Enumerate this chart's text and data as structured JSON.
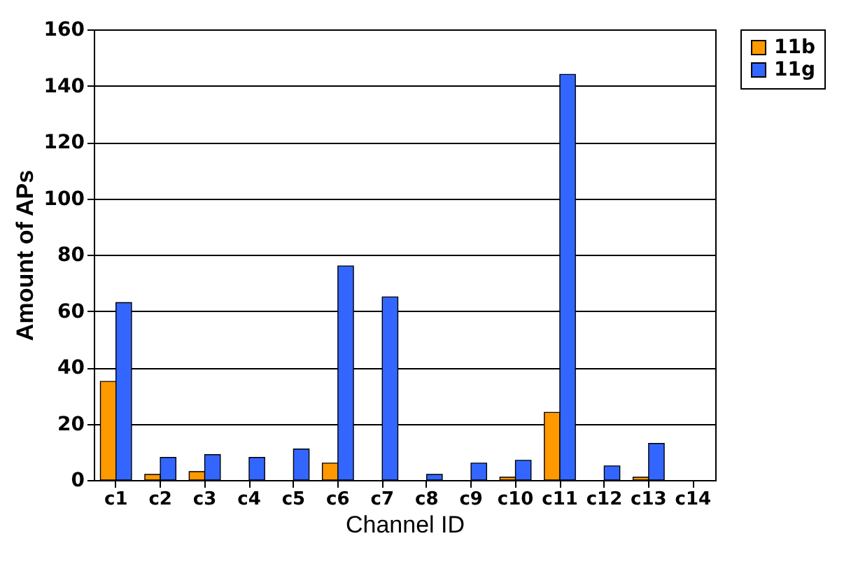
{
  "chart_data": {
    "type": "bar",
    "xlabel": "Channel ID",
    "ylabel": "Amount of APs",
    "categories": [
      "c1",
      "c2",
      "c3",
      "c4",
      "c5",
      "c6",
      "c7",
      "c8",
      "c9",
      "c10",
      "c11",
      "c12",
      "c13",
      "c14"
    ],
    "series": [
      {
        "name": "11b",
        "color": "#ff9900",
        "values": [
          35,
          2,
          3,
          0,
          0,
          6,
          0,
          0,
          0,
          1,
          24,
          0,
          1,
          0
        ]
      },
      {
        "name": "11g",
        "color": "#3366ff",
        "values": [
          63,
          8,
          9,
          8,
          11,
          76,
          65,
          2,
          6,
          7,
          144,
          5,
          13,
          0
        ]
      }
    ],
    "ylim": [
      0,
      160
    ],
    "yticks": [
      0,
      20,
      40,
      60,
      80,
      100,
      120,
      140,
      160
    ],
    "grid": "y",
    "legend": "right"
  }
}
